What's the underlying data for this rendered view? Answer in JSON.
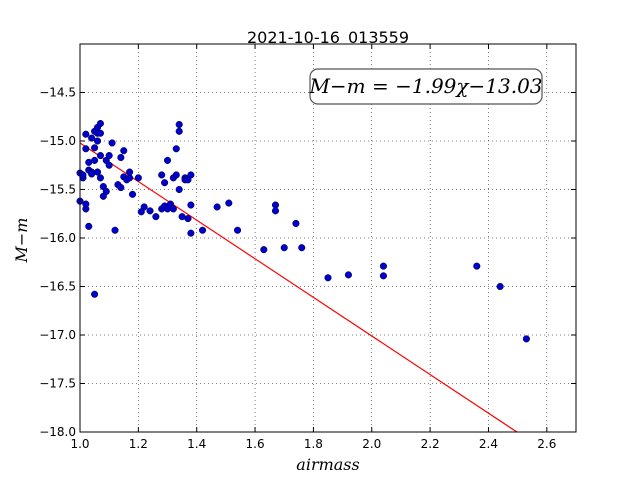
{
  "chart_data": {
    "type": "scatter",
    "title": "2021-10-16_013559",
    "xlabel": "airmass",
    "ylabel": "M−m",
    "xlim": [
      1.0,
      2.7
    ],
    "ylim": [
      -18.0,
      -14.0
    ],
    "x_ticks": [
      "1.0",
      "1.2",
      "1.4",
      "1.6",
      "1.8",
      "2.0",
      "2.2",
      "2.4",
      "2.6"
    ],
    "y_ticks": [
      "−14.5",
      "−15.0",
      "−15.5",
      "−16.0",
      "−16.5",
      "−17.0",
      "−17.5",
      "−18.0"
    ],
    "grid": true,
    "annotation": "M−m = −1.99χ−13.03",
    "fit": {
      "slope": -1.99,
      "intercept": -13.03,
      "color": "#ff0000"
    },
    "marker_color": "#0000cc",
    "points": [
      {
        "x": 1.0,
        "y": -15.33
      },
      {
        "x": 1.0,
        "y": -15.62
      },
      {
        "x": 1.01,
        "y": -15.38
      },
      {
        "x": 1.01,
        "y": -15.35
      },
      {
        "x": 1.02,
        "y": -15.7
      },
      {
        "x": 1.02,
        "y": -15.65
      },
      {
        "x": 1.02,
        "y": -15.08
      },
      {
        "x": 1.02,
        "y": -14.93
      },
      {
        "x": 1.03,
        "y": -15.22
      },
      {
        "x": 1.03,
        "y": -15.3
      },
      {
        "x": 1.03,
        "y": -15.88
      },
      {
        "x": 1.04,
        "y": -14.97
      },
      {
        "x": 1.04,
        "y": -15.32
      },
      {
        "x": 1.04,
        "y": -15.34
      },
      {
        "x": 1.05,
        "y": -15.07
      },
      {
        "x": 1.05,
        "y": -15.2
      },
      {
        "x": 1.05,
        "y": -14.9
      },
      {
        "x": 1.05,
        "y": -16.58
      },
      {
        "x": 1.06,
        "y": -14.86
      },
      {
        "x": 1.06,
        "y": -14.92
      },
      {
        "x": 1.06,
        "y": -15.32
      },
      {
        "x": 1.06,
        "y": -15.0
      },
      {
        "x": 1.07,
        "y": -14.82
      },
      {
        "x": 1.07,
        "y": -14.92
      },
      {
        "x": 1.07,
        "y": -15.15
      },
      {
        "x": 1.07,
        "y": -15.38
      },
      {
        "x": 1.08,
        "y": -15.57
      },
      {
        "x": 1.08,
        "y": -15.47
      },
      {
        "x": 1.09,
        "y": -15.52
      },
      {
        "x": 1.09,
        "y": -15.2
      },
      {
        "x": 1.1,
        "y": -15.25
      },
      {
        "x": 1.1,
        "y": -15.15
      },
      {
        "x": 1.11,
        "y": -15.02
      },
      {
        "x": 1.12,
        "y": -15.92
      },
      {
        "x": 1.13,
        "y": -15.45
      },
      {
        "x": 1.14,
        "y": -15.48
      },
      {
        "x": 1.14,
        "y": -15.17
      },
      {
        "x": 1.15,
        "y": -15.1
      },
      {
        "x": 1.15,
        "y": -15.37
      },
      {
        "x": 1.16,
        "y": -15.4
      },
      {
        "x": 1.17,
        "y": -15.38
      },
      {
        "x": 1.17,
        "y": -15.32
      },
      {
        "x": 1.18,
        "y": -15.55
      },
      {
        "x": 1.2,
        "y": -15.38
      },
      {
        "x": 1.21,
        "y": -15.73
      },
      {
        "x": 1.22,
        "y": -15.68
      },
      {
        "x": 1.24,
        "y": -15.72
      },
      {
        "x": 1.26,
        "y": -15.78
      },
      {
        "x": 1.28,
        "y": -15.35
      },
      {
        "x": 1.28,
        "y": -15.7
      },
      {
        "x": 1.29,
        "y": -15.43
      },
      {
        "x": 1.29,
        "y": -15.67
      },
      {
        "x": 1.3,
        "y": -15.2
      },
      {
        "x": 1.3,
        "y": -15.7
      },
      {
        "x": 1.31,
        "y": -15.65
      },
      {
        "x": 1.32,
        "y": -15.38
      },
      {
        "x": 1.32,
        "y": -15.7
      },
      {
        "x": 1.33,
        "y": -15.35
      },
      {
        "x": 1.33,
        "y": -15.08
      },
      {
        "x": 1.34,
        "y": -14.83
      },
      {
        "x": 1.34,
        "y": -14.9
      },
      {
        "x": 1.34,
        "y": -15.5
      },
      {
        "x": 1.35,
        "y": -15.78
      },
      {
        "x": 1.36,
        "y": -15.38
      },
      {
        "x": 1.36,
        "y": -15.4
      },
      {
        "x": 1.37,
        "y": -15.4
      },
      {
        "x": 1.37,
        "y": -15.8
      },
      {
        "x": 1.38,
        "y": -15.35
      },
      {
        "x": 1.38,
        "y": -15.66
      },
      {
        "x": 1.38,
        "y": -15.95
      },
      {
        "x": 1.42,
        "y": -15.92
      },
      {
        "x": 1.47,
        "y": -15.68
      },
      {
        "x": 1.51,
        "y": -15.64
      },
      {
        "x": 1.54,
        "y": -15.92
      },
      {
        "x": 1.63,
        "y": -16.12
      },
      {
        "x": 1.67,
        "y": -15.66
      },
      {
        "x": 1.67,
        "y": -15.72
      },
      {
        "x": 1.7,
        "y": -16.1
      },
      {
        "x": 1.74,
        "y": -15.85
      },
      {
        "x": 1.76,
        "y": -16.1
      },
      {
        "x": 1.85,
        "y": -16.41
      },
      {
        "x": 1.92,
        "y": -16.38
      },
      {
        "x": 2.04,
        "y": -16.29
      },
      {
        "x": 2.04,
        "y": -16.39
      },
      {
        "x": 2.36,
        "y": -16.29
      },
      {
        "x": 2.44,
        "y": -16.5
      },
      {
        "x": 2.53,
        "y": -17.04
      }
    ]
  }
}
